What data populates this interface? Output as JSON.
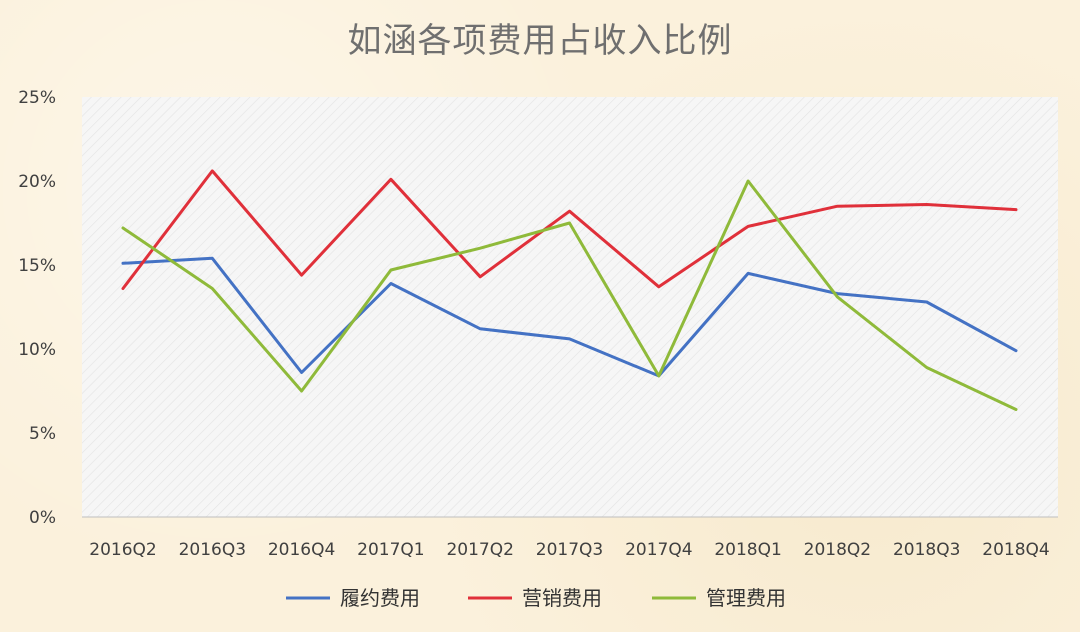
{
  "chart_data": {
    "type": "line",
    "title": "如涵各项费用占收入比例",
    "xlabel": "",
    "ylabel": "",
    "categories": [
      "2016Q2",
      "2016Q3",
      "2016Q4",
      "2017Q1",
      "2017Q2",
      "2017Q3",
      "2017Q4",
      "2018Q1",
      "2018Q2",
      "2018Q3",
      "2018Q4"
    ],
    "ylim": [
      0,
      25
    ],
    "yticks": [
      0,
      5,
      10,
      15,
      20,
      25
    ],
    "ytick_labels": [
      "0%",
      "5%",
      "10%",
      "15%",
      "20%",
      "25%"
    ],
    "grid": false,
    "legend_position": "bottom",
    "series": [
      {
        "name": "履约费用",
        "color": "#4472c4",
        "values": [
          15.1,
          15.4,
          8.6,
          13.9,
          11.2,
          10.6,
          8.4,
          14.5,
          13.3,
          12.8,
          9.9
        ]
      },
      {
        "name": "营销费用",
        "color": "#e0303a",
        "values": [
          13.6,
          20.6,
          14.4,
          20.1,
          14.3,
          18.2,
          13.7,
          17.3,
          18.5,
          18.6,
          18.3
        ]
      },
      {
        "name": "管理费用",
        "color": "#8fba3a",
        "values": [
          17.2,
          13.6,
          7.5,
          14.7,
          16.0,
          17.5,
          8.4,
          20.0,
          13.1,
          8.9,
          6.4
        ]
      }
    ]
  }
}
